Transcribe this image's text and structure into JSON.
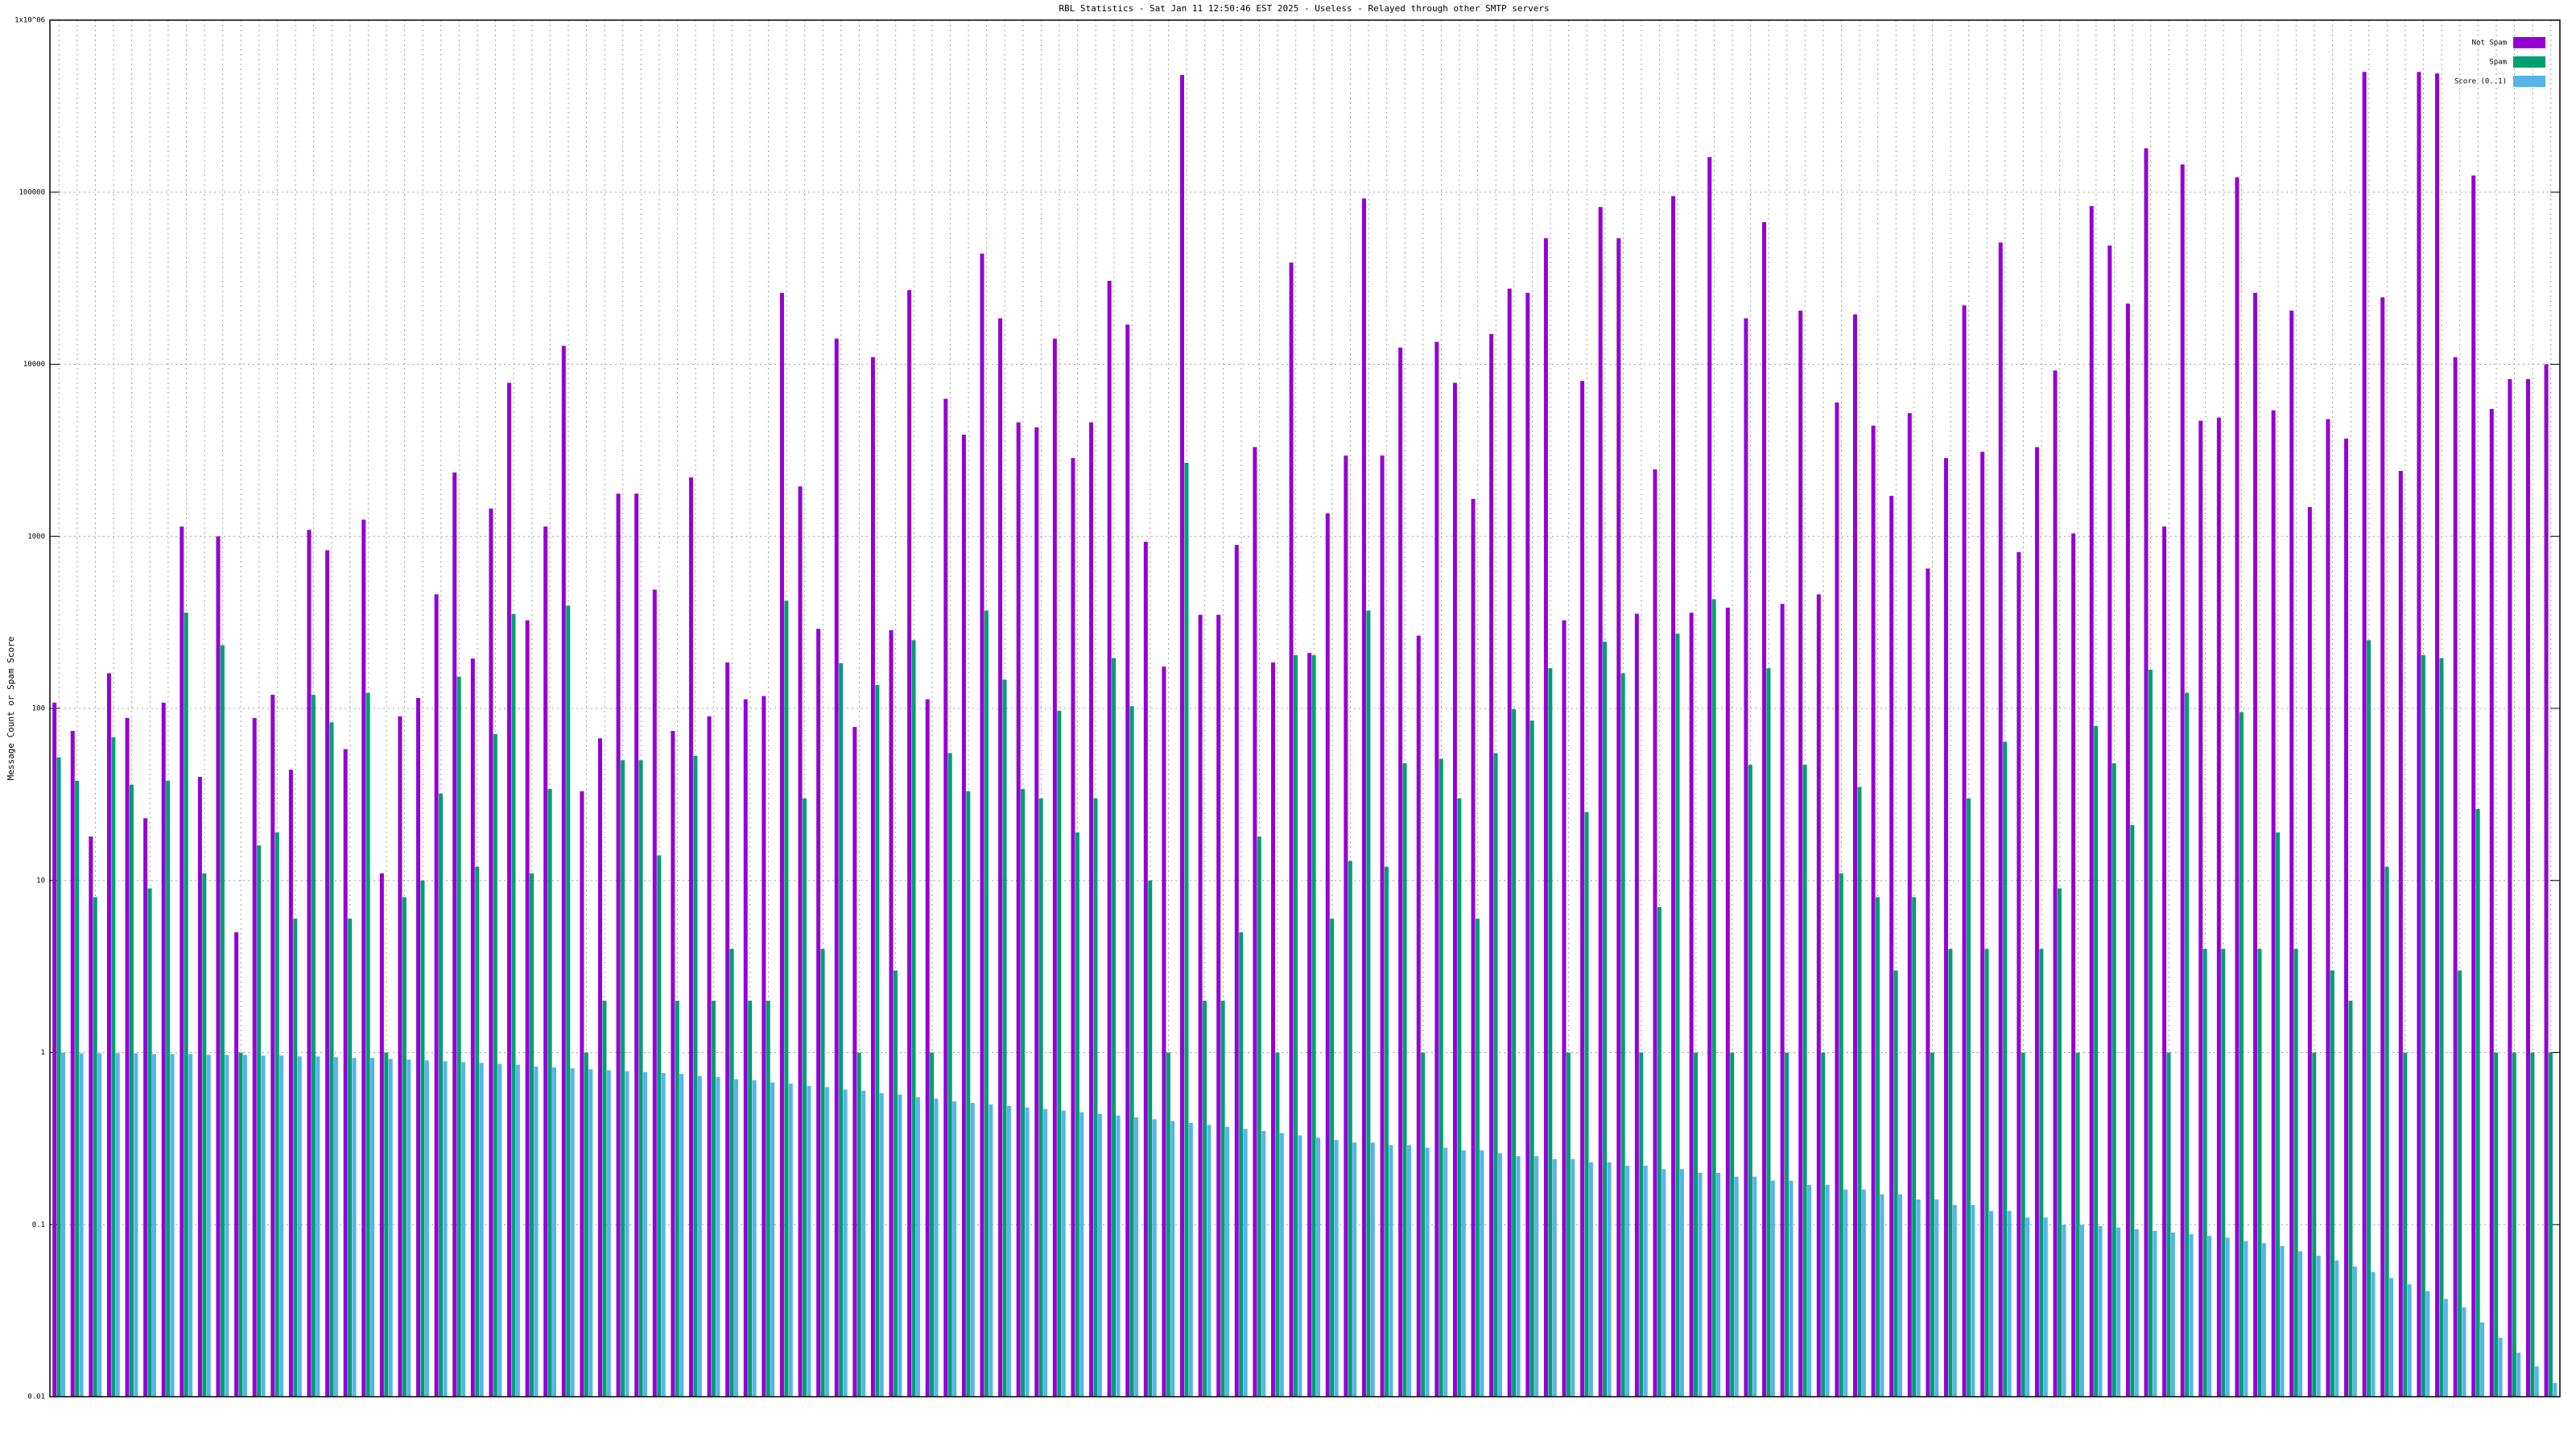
{
  "chart_data": {
    "type": "bar",
    "title": "RBL Statistics - Sat Jan 11 12:50:46 EST 2025 - Useless - Relayed through other SMTP servers",
    "y_label": "Message Count or Spam Score",
    "log_y": true,
    "grid": true,
    "legend": "top-right",
    "ylim": [
      0.01,
      1000000
    ],
    "yticks": [
      0.01,
      0.1,
      1,
      10,
      100,
      1000,
      10000,
      100000,
      {
        "value": 1000000,
        "label": "1x10^06"
      }
    ],
    "categories": [
      null,
      null,
      null,
      null,
      null,
      null,
      null,
      null,
      null,
      null,
      null,
      null,
      null,
      null,
      null,
      null,
      null,
      null,
      null,
      null,
      null,
      null,
      null,
      null,
      null,
      null,
      null,
      null,
      null,
      null,
      null,
      null,
      null,
      null,
      null,
      null,
      null,
      null,
      null,
      null,
      null,
      null,
      null,
      null,
      null,
      null,
      null,
      null,
      null,
      null,
      null,
      null,
      null,
      null,
      null,
      null,
      null,
      null,
      null,
      null,
      null,
      null,
      null,
      null,
      null,
      null,
      null,
      null,
      null,
      null,
      null,
      null,
      null,
      null,
      null,
      null,
      null,
      null,
      null,
      null,
      null,
      null,
      null,
      null,
      null,
      null,
      null,
      null,
      null,
      null,
      null,
      null,
      null,
      null,
      null,
      null,
      null,
      null,
      null,
      null,
      null,
      null,
      null,
      null,
      null,
      null,
      null,
      null,
      null,
      null,
      null,
      null,
      null,
      null,
      null,
      null,
      null,
      null,
      null,
      null,
      null,
      null,
      null,
      null,
      null,
      null,
      null,
      null,
      null,
      null,
      null,
      null,
      null,
      null,
      null,
      null,
      null,
      null
    ],
    "series": [
      {
        "name": "Not Spam",
        "color": "#9400d3",
        "values": [
          108,
          74,
          18,
          160,
          88,
          23,
          108,
          1140,
          40,
          1000,
          5,
          88,
          120,
          44,
          1090,
          830,
          58,
          1250,
          11,
          90,
          115,
          460,
          2350,
          195,
          1450,
          7800,
          325,
          1140,
          12800,
          33,
          67,
          1770,
          1770,
          490,
          74,
          2200,
          90,
          185,
          113,
          118,
          26000,
          1950,
          290,
          14100,
          78,
          11000,
          285,
          27000,
          113,
          6300,
          3900,
          44000,
          18500,
          4600,
          4300,
          14100,
          2850,
          4600,
          30500,
          17000,
          930,
          175,
          480000,
          350,
          350,
          890,
          3300,
          185,
          39000,
          210,
          1360,
          2950,
          92000,
          2950,
          12500,
          265,
          13500,
          7800,
          1650,
          15000,
          27500,
          26000,
          54000,
          325,
          8000,
          82000,
          54000,
          355,
          2450,
          95000,
          360,
          160000,
          385,
          18500,
          67000,
          405,
          20500,
          460,
          6000,
          19500,
          4400,
          1720,
          5200,
          650,
          2850,
          22000,
          3100,
          51000,
          810,
          3300,
          9200,
          1040,
          83000,
          49000,
          22500,
          180000,
          1140,
          145000,
          4700,
          4900,
          122000,
          26000,
          5400,
          20500,
          1480,
          4800,
          3700,
          500000,
          24500,
          2400,
          500000,
          490000,
          11000,
          125000,
          5500,
          8200,
          8200,
          10000
        ]
      },
      {
        "name": "Spam",
        "color": "#009e73",
        "values": [
          52,
          38,
          8,
          68,
          36,
          9,
          38,
          360,
          11,
          233,
          1,
          16,
          19,
          6,
          120,
          83,
          6,
          123,
          1,
          8,
          10,
          32,
          153,
          12,
          71,
          354,
          11,
          34,
          395,
          1,
          2,
          50,
          50,
          14,
          2,
          53,
          2,
          4,
          2,
          2,
          422,
          30,
          4,
          183,
          1,
          137,
          3,
          249,
          1,
          55,
          33,
          370,
          147,
          34,
          30,
          97,
          19,
          30,
          196,
          103,
          10,
          1,
          2675,
          2,
          2,
          5,
          18,
          1,
          204,
          204,
          6,
          13,
          370,
          12,
          48,
          1,
          51,
          30,
          6,
          55,
          99,
          85,
          171,
          1,
          25,
          244,
          160,
          1,
          7,
          272,
          1,
          431,
          1,
          47,
          171,
          1,
          47,
          1,
          11,
          35,
          8,
          3,
          8,
          1,
          4,
          30,
          4,
          64,
          1,
          4,
          9,
          1,
          79,
          48,
          21,
          168,
          1,
          123,
          4,
          4,
          95,
          4,
          19,
          4,
          1,
          3,
          2,
          249,
          12,
          1,
          204,
          196,
          3,
          26,
          1,
          1,
          1,
          1
        ]
      },
      {
        "name": "Score (0..1)",
        "color": "#56b4e9",
        "values": [
          1,
          0.99,
          0.99,
          0.99,
          0.99,
          0.98,
          0.98,
          0.98,
          0.97,
          0.97,
          0.97,
          0.96,
          0.96,
          0.95,
          0.95,
          0.94,
          0.93,
          0.93,
          0.92,
          0.91,
          0.9,
          0.89,
          0.88,
          0.87,
          0.86,
          0.85,
          0.83,
          0.82,
          0.81,
          0.8,
          0.79,
          0.78,
          0.77,
          0.76,
          0.75,
          0.73,
          0.72,
          0.7,
          0.69,
          0.67,
          0.66,
          0.64,
          0.63,
          0.61,
          0.6,
          0.58,
          0.57,
          0.55,
          0.54,
          0.52,
          0.51,
          0.5,
          0.49,
          0.48,
          0.47,
          0.46,
          0.45,
          0.44,
          0.43,
          0.42,
          0.41,
          0.4,
          0.39,
          0.38,
          0.37,
          0.36,
          0.35,
          0.34,
          0.33,
          0.32,
          0.31,
          0.3,
          0.3,
          0.29,
          0.29,
          0.28,
          0.28,
          0.27,
          0.27,
          0.26,
          0.25,
          0.25,
          0.24,
          0.24,
          0.23,
          0.23,
          0.22,
          0.22,
          0.21,
          0.21,
          0.2,
          0.2,
          0.19,
          0.19,
          0.18,
          0.18,
          0.17,
          0.17,
          0.16,
          0.16,
          0.15,
          0.15,
          0.14,
          0.14,
          0.13,
          0.13,
          0.12,
          0.12,
          0.11,
          0.11,
          0.1,
          0.1,
          0.098,
          0.096,
          0.094,
          0.092,
          0.09,
          0.088,
          0.086,
          0.084,
          0.08,
          0.078,
          0.075,
          0.07,
          0.066,
          0.062,
          0.057,
          0.053,
          0.049,
          0.045,
          0.041,
          0.037,
          0.033,
          0.027,
          0.022,
          0.018,
          0.015,
          0.012
        ]
      }
    ]
  }
}
